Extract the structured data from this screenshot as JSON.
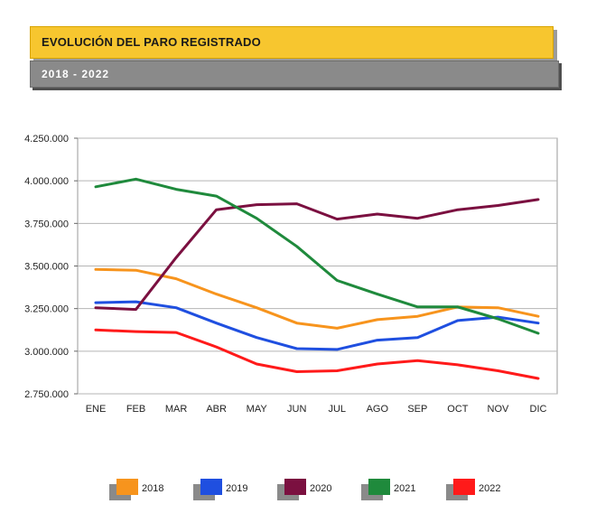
{
  "header": {
    "title": "EVOLUCIÓN DEL PARO REGISTRADO",
    "subtitle": "2018 - 2022"
  },
  "colors": {
    "title_bg": "#f7c62f",
    "subtitle_bg": "#8a8a8a",
    "2018": "#f7941d",
    "2019": "#1f4fe0",
    "2020": "#7b1040",
    "2021": "#1f8a3c",
    "2022": "#ff1a1a"
  },
  "chart_data": {
    "type": "line",
    "title": "",
    "xlabel": "",
    "ylabel": "",
    "categories": [
      "ENE",
      "FEB",
      "MAR",
      "ABR",
      "MAY",
      "JUN",
      "JUL",
      "AGO",
      "SEP",
      "OCT",
      "NOV",
      "DIC"
    ],
    "ylim": [
      2750000,
      4250000
    ],
    "yticks": [
      2750000,
      3000000,
      3250000,
      3500000,
      3750000,
      4000000,
      4250000
    ],
    "ytick_labels": [
      "2.750.000",
      "3.000.000",
      "3.250.000",
      "3.500.000",
      "3.750.000",
      "4.000.000",
      "4.250.000"
    ],
    "grid": true,
    "legend_position": "bottom",
    "series": [
      {
        "name": "2018",
        "color": "#f7941d",
        "values": [
          3480000,
          3475000,
          3425000,
          3335000,
          3255000,
          3165000,
          3135000,
          3185000,
          3205000,
          3260000,
          3255000,
          3205000
        ]
      },
      {
        "name": "2019",
        "color": "#1f4fe0",
        "values": [
          3285000,
          3290000,
          3255000,
          3165000,
          3080000,
          3015000,
          3010000,
          3065000,
          3080000,
          3180000,
          3200000,
          3165000
        ]
      },
      {
        "name": "2020",
        "color": "#7b1040",
        "values": [
          3255000,
          3245000,
          3550000,
          3830000,
          3860000,
          3865000,
          3775000,
          3805000,
          3780000,
          3830000,
          3855000,
          3890000
        ]
      },
      {
        "name": "2021",
        "color": "#1f8a3c",
        "values": [
          3965000,
          4010000,
          3950000,
          3910000,
          3780000,
          3615000,
          3415000,
          3335000,
          3260000,
          3260000,
          3190000,
          3105000
        ]
      },
      {
        "name": "2022",
        "color": "#ff1a1a",
        "values": [
          3125000,
          3115000,
          3110000,
          3025000,
          2925000,
          2880000,
          2885000,
          2925000,
          2945000,
          2920000,
          2885000,
          2840000
        ]
      }
    ]
  }
}
